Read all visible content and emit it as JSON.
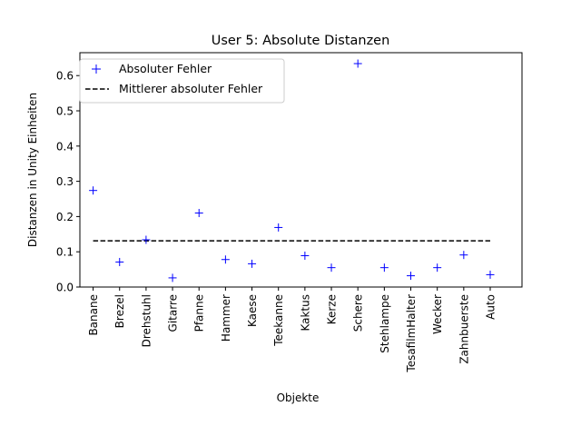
{
  "chart_data": {
    "type": "scatter",
    "title": "User 5: Absolute Distanzen",
    "xlabel": "Objekte",
    "ylabel": "Distanzen in Unity Einheiten",
    "categories": [
      "Banane",
      "Brezel",
      "Drehstuhl",
      "Gitarre",
      "Pfanne",
      "Hammer",
      "Kaese",
      "Teekanne",
      "Kaktus",
      "Kerze",
      "Schere",
      "Stehlampe",
      "TesafilmHalter",
      "Wecker",
      "Zahnbuerste",
      "Auto"
    ],
    "series": [
      {
        "name": "Absoluter Fehler",
        "marker": "+",
        "color": "#0000ff",
        "values": [
          0.274,
          0.071,
          0.134,
          0.026,
          0.21,
          0.078,
          0.066,
          0.169,
          0.089,
          0.055,
          0.634,
          0.055,
          0.032,
          0.055,
          0.091,
          0.035
        ]
      },
      {
        "name": "Mittlerer absoluter Fehler",
        "style": "dashed",
        "color": "#000000",
        "value": 0.131
      }
    ],
    "ylim": [
      0,
      0.665
    ],
    "yticks": [
      "0.0",
      "0.1",
      "0.2",
      "0.3",
      "0.4",
      "0.5",
      "0.6"
    ],
    "grid": false,
    "legend": "top-left"
  }
}
